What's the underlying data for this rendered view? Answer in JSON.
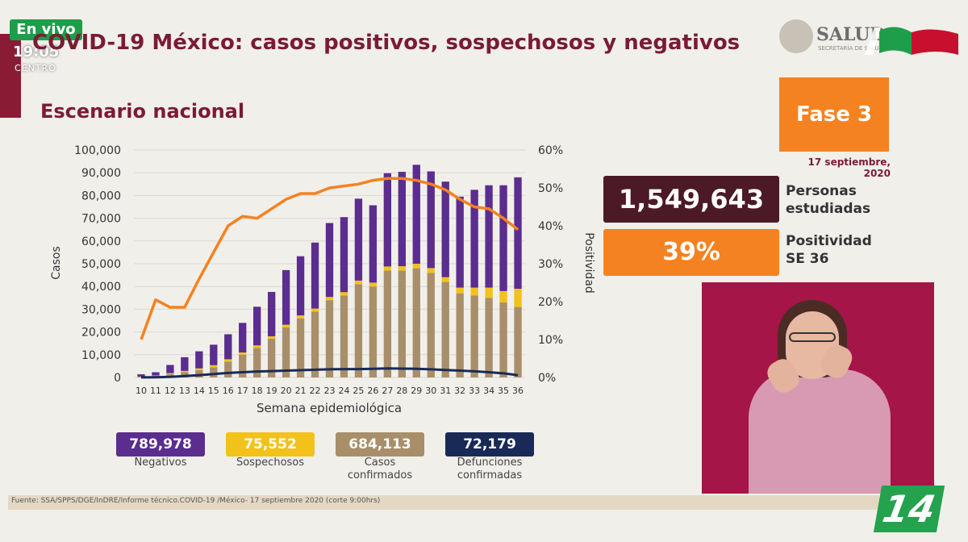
{
  "live_badge": "En vivo",
  "clock": {
    "time": "19:05",
    "zone": "CENTRO"
  },
  "title": "COVID-19 México: casos positivos, sospechosos y negativos",
  "subtitle": "Escenario nacional",
  "logo": {
    "text": "SALUD",
    "sub": "SECRETARÍA DE SALUD"
  },
  "phase": {
    "label": "Fase 3",
    "date": "17 septiembre, 2020"
  },
  "kpis": [
    {
      "value": "1,549,643",
      "label_line1": "Personas",
      "label_line2": "estudiadas"
    },
    {
      "value": "39%",
      "label_line1": "Positividad",
      "label_line2": "SE 36"
    }
  ],
  "stats": [
    {
      "value": "789,978",
      "label_line1": "Negativos",
      "label_line2": "",
      "color": "#5b2d8e"
    },
    {
      "value": "75,552",
      "label_line1": "Sospechosos",
      "label_line2": "",
      "color": "#f2c21b"
    },
    {
      "value": "684,113",
      "label_line1": "Casos",
      "label_line2": "confirmados",
      "color": "#a88f6a"
    },
    {
      "value": "72,179",
      "label_line1": "Defunciones",
      "label_line2": "confirmadas",
      "color": "#1a2a57"
    }
  ],
  "footer": "Fuente: SSA/SPPS/DGE/InDRE/Informe técnico.COVID-19 /México- 17 septiembre 2020 (corte 9:00hrs)",
  "channel_logo": "14",
  "colors": {
    "brand": "#7b1b33",
    "orange": "#f58220",
    "negativos": "#5b2d8e",
    "sospechosos": "#f2c21b",
    "confirmados": "#a88f6a",
    "defunciones": "#1a2a57"
  },
  "chart_data": {
    "type": "bar",
    "stacked": true,
    "categories": [
      "10",
      "11",
      "12",
      "13",
      "14",
      "15",
      "16",
      "17",
      "18",
      "19",
      "20",
      "21",
      "22",
      "23",
      "24",
      "25",
      "26",
      "27",
      "28",
      "29",
      "30",
      "31",
      "32",
      "33",
      "34",
      "35",
      "36"
    ],
    "xlabel": "Semana epidemiológica",
    "ylabel": "Casos",
    "y2label": "Positividad",
    "ylim": [
      0,
      100000
    ],
    "y2lim": [
      0,
      60
    ],
    "yticks": [
      "0",
      "10,000",
      "20,000",
      "30,000",
      "40,000",
      "50,000",
      "60,000",
      "70,000",
      "80,000",
      "90,000",
      "100,000"
    ],
    "y2ticks": [
      "0%",
      "10%",
      "20%",
      "30%",
      "40%",
      "50%",
      "60%"
    ],
    "series": [
      {
        "key": "confirmados",
        "color": "#a88f6a",
        "values": [
          300,
          700,
          1500,
          2300,
          3200,
          4500,
          7000,
          10000,
          13000,
          17000,
          22000,
          26000,
          29000,
          34000,
          36000,
          41000,
          40000,
          47000,
          47000,
          48000,
          46000,
          42000,
          37000,
          36000,
          35000,
          33000,
          31000
        ]
      },
      {
        "key": "sospechosos",
        "color": "#f2c21b",
        "values": [
          100,
          200,
          400,
          600,
          800,
          900,
          1000,
          1000,
          1100,
          1100,
          1200,
          1300,
          1300,
          1400,
          1500,
          1600,
          1700,
          1800,
          1900,
          2000,
          2100,
          2100,
          2500,
          3500,
          4500,
          5000,
          8000
        ]
      },
      {
        "key": "negativos",
        "color": "#5b2d8e",
        "values": [
          1000,
          1400,
          3600,
          6000,
          7500,
          9000,
          11000,
          13000,
          17000,
          19500,
          24000,
          26000,
          29000,
          32500,
          33000,
          36000,
          34000,
          41000,
          41500,
          43500,
          42500,
          42000,
          40000,
          43000,
          45000,
          46500,
          49000
        ]
      }
    ],
    "line_deaths": {
      "key": "defunciones",
      "color": "#1a2a57",
      "values": [
        50,
        100,
        250,
        600,
        1000,
        1500,
        2000,
        2300,
        2600,
        2800,
        3000,
        3200,
        3400,
        3600,
        3700,
        3700,
        3800,
        4000,
        3900,
        3800,
        3600,
        3300,
        3000,
        2700,
        2300,
        1800,
        1000
      ]
    },
    "line_positivity": {
      "key": "positividad",
      "color": "#f58220",
      "values": [
        10,
        20.5,
        18.5,
        18.5,
        26,
        33,
        40,
        42.5,
        42,
        44.5,
        47,
        48.5,
        48.5,
        50,
        50.5,
        51,
        52,
        52.5,
        52.5,
        52,
        51,
        49.5,
        47,
        45,
        44.5,
        42,
        39
      ]
    }
  }
}
